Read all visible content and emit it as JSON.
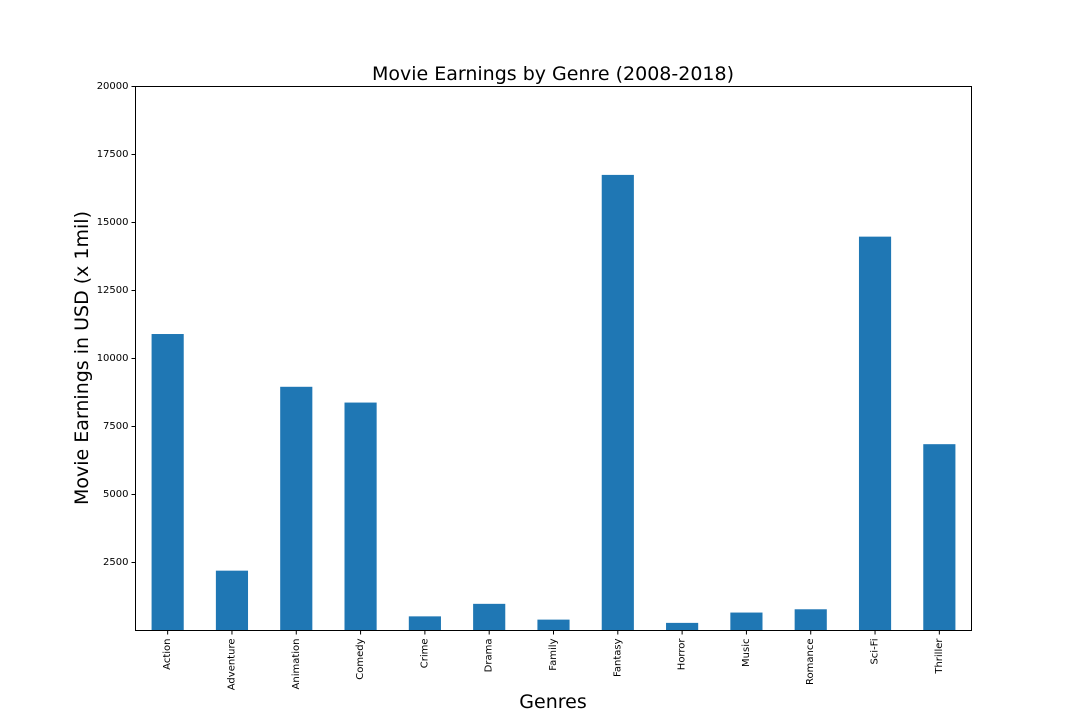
{
  "chart_data": {
    "type": "bar",
    "title": "Movie Earnings by Genre (2008-2018)",
    "xlabel": "Genres",
    "ylabel": "Movie Earnings in USD (x 1mil)",
    "categories": [
      "Action",
      "Adventure",
      "Animation",
      "Comedy",
      "Crime",
      "Drama",
      "Family",
      "Fantasy",
      "Horror",
      "Music",
      "Romance",
      "Sci-Fi",
      "Thriller"
    ],
    "values": [
      10900,
      2200,
      8960,
      8380,
      520,
      980,
      400,
      16750,
      280,
      660,
      780,
      14480,
      6850
    ],
    "ylim": [
      0,
      20000
    ],
    "yticks": [
      2500,
      5000,
      7500,
      10000,
      12500,
      15000,
      17500,
      20000
    ],
    "ytick_labels": [
      "2500",
      "5000",
      "7500",
      "10000",
      "12500",
      "15000",
      "17500",
      "20000"
    ],
    "grid": false,
    "legend": false,
    "colors": {
      "bar": "#1f77b4",
      "axis": "#000000",
      "background": "#ffffff"
    }
  }
}
